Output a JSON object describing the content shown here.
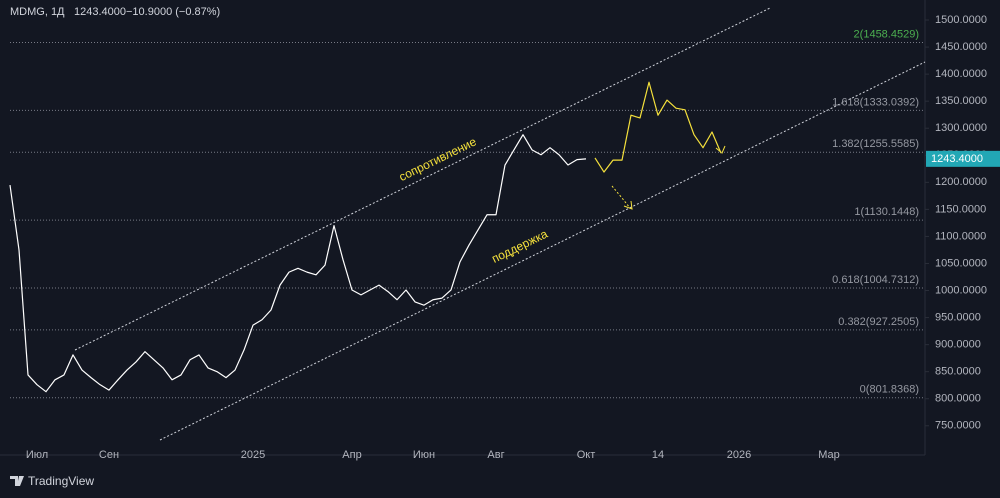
{
  "header": {
    "symbol": "MDMG, 1Д",
    "price": "1243.4000",
    "change": "−10.9000 (−0.87%)"
  },
  "footer": "TradingView",
  "chart_data": {
    "type": "line",
    "categories": [
      null,
      null,
      null,
      "Июл",
      null,
      null,
      null,
      null,
      null,
      null,
      null,
      "Сен",
      null,
      null,
      null,
      null,
      null,
      null,
      null,
      null,
      null,
      null,
      null,
      null,
      null,
      null,
      null,
      "2025",
      null,
      null,
      null,
      null,
      null,
      null,
      null,
      null,
      null,
      null,
      "Апр",
      null,
      null,
      null,
      null,
      null,
      null,
      null,
      "Июн",
      null,
      null,
      null,
      null,
      null,
      null,
      null,
      "Авг",
      null,
      null,
      null,
      null,
      null,
      null,
      null,
      null,
      null,
      "Окт",
      null,
      null,
      null,
      null,
      null,
      null,
      null,
      "14",
      null,
      null,
      null,
      null,
      null,
      null,
      null,
      null,
      "2026",
      null,
      null,
      null,
      null,
      null,
      null,
      null,
      null,
      null,
      "Мар",
      null,
      null,
      null,
      null,
      null,
      null,
      null,
      null,
      null,
      null
    ],
    "series": [
      {
        "color": "#ffffff",
        "values": [
          1195,
          1075,
          844,
          826,
          813,
          835,
          844,
          881,
          853,
          839,
          826,
          816,
          835,
          853,
          868,
          887,
          872,
          857,
          835,
          844,
          872,
          881,
          857,
          850,
          839,
          853,
          890,
          936,
          946,
          964,
          1010,
          1034,
          1041,
          1034,
          1029,
          1047,
          1120,
          1057,
          1001,
          992,
          1001,
          1010,
          998,
          983,
          1001,
          979,
          973,
          983,
          986,
          1001,
          1053,
          1084,
          1112,
          1140,
          1140,
          1232,
          1260,
          1288,
          1260,
          1251,
          1264,
          1251,
          1232,
          1242,
          1243.4,
          null,
          null,
          null,
          null,
          null,
          null,
          null,
          null,
          null,
          null,
          null,
          null,
          null,
          null,
          null,
          null,
          null,
          null,
          null,
          null,
          null,
          null,
          null,
          null,
          null,
          null,
          null,
          null,
          null,
          null,
          null,
          null,
          null,
          null,
          null,
          null,
          null
        ]
      },
      {
        "color": "#f5e13c",
        "values": [
          null,
          null,
          null,
          null,
          null,
          null,
          null,
          null,
          null,
          null,
          null,
          null,
          null,
          null,
          null,
          null,
          null,
          null,
          null,
          null,
          null,
          null,
          null,
          null,
          null,
          null,
          null,
          null,
          null,
          null,
          null,
          null,
          null,
          null,
          null,
          null,
          null,
          null,
          null,
          null,
          null,
          null,
          null,
          null,
          null,
          null,
          null,
          null,
          null,
          null,
          null,
          null,
          null,
          null,
          null,
          null,
          null,
          null,
          null,
          null,
          null,
          null,
          null,
          null,
          null,
          1245,
          1219,
          1241,
          1241,
          1324,
          1319,
          1385,
          1324,
          1352,
          1337,
          1334,
          1288,
          1264,
          1293,
          1254,
          null,
          null,
          null,
          null,
          null,
          null,
          null,
          null,
          null,
          null,
          null,
          null,
          null,
          null,
          null,
          null,
          null,
          null,
          null,
          null,
          null,
          null
        ]
      }
    ],
    "ylim": [
      696,
      1537
    ],
    "yticks": [
      {
        "value": 750,
        "label": "750.0000"
      },
      {
        "value": 800,
        "label": "800.0000"
      },
      {
        "value": 850,
        "label": "850.0000"
      },
      {
        "value": 900,
        "label": "900.0000"
      },
      {
        "value": 950,
        "label": "950.0000"
      },
      {
        "value": 1000,
        "label": "1000.0000"
      },
      {
        "value": 1050,
        "label": "1050.0000"
      },
      {
        "value": 1100,
        "label": "1100.0000"
      },
      {
        "value": 1150,
        "label": "1150.0000"
      },
      {
        "value": 1200,
        "label": "1200.0000"
      },
      {
        "value": 1250,
        "label": "1250.0000"
      },
      {
        "value": 1300,
        "label": "1300.0000"
      },
      {
        "value": 1350,
        "label": "1350.0000"
      },
      {
        "value": 1400,
        "label": "1400.0000"
      },
      {
        "value": 1450,
        "label": "1450.0000"
      },
      {
        "value": 1500,
        "label": "1500.0000"
      }
    ],
    "last_price": {
      "value": 1243.4,
      "label": "1243.4000",
      "color": "#22a7b5"
    },
    "levels": [
      {
        "value": 1458.4529,
        "label": "2(1458.4529)",
        "color": "#4caf50"
      },
      {
        "value": 1333.0392,
        "label": "1.618(1333.0392)",
        "color": "#9598a1"
      },
      {
        "value": 1255.5585,
        "label": "1.382(1255.5585)",
        "color": "#9598a1"
      },
      {
        "value": 1130.1448,
        "label": "1(1130.1448)",
        "color": "#9598a1"
      },
      {
        "value": 1004.7312,
        "label": "0.618(1004.7312)",
        "color": "#9598a1"
      },
      {
        "value": 927.2505,
        "label": "0.382(927.2505)",
        "color": "#9598a1"
      },
      {
        "value": 801.8368,
        "label": "0(801.8368)",
        "color": "#9598a1"
      }
    ],
    "annotations": [
      {
        "text": "сопротивление",
        "color": "#f5e13c"
      },
      {
        "text": "поддержка",
        "color": "#f5e13c"
      }
    ]
  }
}
